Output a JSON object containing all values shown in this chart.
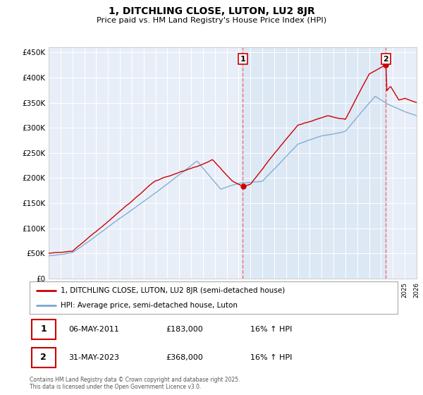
{
  "title": "1, DITCHLING CLOSE, LUTON, LU2 8JR",
  "subtitle": "Price paid vs. HM Land Registry's House Price Index (HPI)",
  "legend_label_red": "1, DITCHLING CLOSE, LUTON, LU2 8JR (semi-detached house)",
  "legend_label_blue": "HPI: Average price, semi-detached house, Luton",
  "annotation1_label": "1",
  "annotation1_date": "06-MAY-2011",
  "annotation1_price": "£183,000",
  "annotation1_hpi": "16% ↑ HPI",
  "annotation2_label": "2",
  "annotation2_date": "31-MAY-2023",
  "annotation2_price": "£368,000",
  "annotation2_hpi": "16% ↑ HPI",
  "footnote": "Contains HM Land Registry data © Crown copyright and database right 2025.\nThis data is licensed under the Open Government Licence v3.0.",
  "red_color": "#cc0000",
  "blue_color": "#7aa8cc",
  "shade_color": "#dce8f5",
  "dashed_color": "#e87070",
  "background_plot": "#e8eef8",
  "grid_color": "#ffffff",
  "ylim": [
    0,
    460000
  ],
  "yticks": [
    0,
    50000,
    100000,
    150000,
    200000,
    250000,
    300000,
    350000,
    400000,
    450000
  ],
  "ytick_labels": [
    "£0",
    "£50K",
    "£100K",
    "£150K",
    "£200K",
    "£250K",
    "£300K",
    "£350K",
    "£400K",
    "£450K"
  ],
  "year_start": 1995,
  "year_end": 2026,
  "sale1_year": 2011.35,
  "sale1_price": 183000,
  "sale2_year": 2023.41,
  "sale2_price": 368000
}
